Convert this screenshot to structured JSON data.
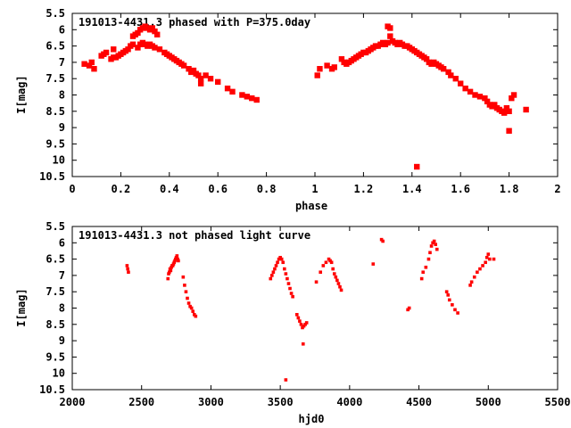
{
  "chart_data": [
    {
      "type": "scatter",
      "title": "191013-4431.3 phased with P=375.0day",
      "xlabel": "phase",
      "ylabel": "I[mag]",
      "xlim": [
        0,
        2
      ],
      "ylim": [
        10.5,
        5.5
      ],
      "y_inverted": true,
      "grid": false,
      "legend": "none",
      "color": "#ff0000",
      "marker_size": "large",
      "xticks": [
        "0",
        "0.2",
        "0.4",
        "0.6",
        "0.8",
        "1",
        "1.2",
        "1.4",
        "1.6",
        "1.8",
        "2"
      ],
      "xtick_values": [
        0,
        0.2,
        0.4,
        0.6,
        0.8,
        1.0,
        1.2,
        1.4,
        1.6,
        1.8,
        2.0
      ],
      "yticks": [
        "5.5",
        "6",
        "6.5",
        "7",
        "7.5",
        "8",
        "8.5",
        "9",
        "9.5",
        "10",
        "10.5"
      ],
      "ytick_values": [
        5.5,
        6,
        6.5,
        7,
        7.5,
        8,
        8.5,
        9,
        9.5,
        10,
        10.5
      ],
      "series": [
        {
          "points": [
            [
              0.05,
              7.05
            ],
            [
              0.07,
              7.1
            ],
            [
              0.08,
              7.0
            ],
            [
              0.09,
              7.2
            ],
            [
              0.12,
              6.8
            ],
            [
              0.13,
              6.75
            ],
            [
              0.14,
              6.7
            ],
            [
              0.16,
              6.9
            ],
            [
              0.17,
              6.85
            ],
            [
              0.17,
              6.6
            ],
            [
              0.18,
              6.85
            ],
            [
              0.19,
              6.8
            ],
            [
              0.2,
              6.75
            ],
            [
              0.21,
              6.7
            ],
            [
              0.22,
              6.65
            ],
            [
              0.23,
              6.6
            ],
            [
              0.24,
              6.5
            ],
            [
              0.25,
              6.45
            ],
            [
              0.25,
              6.2
            ],
            [
              0.26,
              6.15
            ],
            [
              0.27,
              6.1
            ],
            [
              0.27,
              6.55
            ],
            [
              0.28,
              6.0
            ],
            [
              0.28,
              6.45
            ],
            [
              0.29,
              5.95
            ],
            [
              0.29,
              6.4
            ],
            [
              0.3,
              5.9
            ],
            [
              0.3,
              6.45
            ],
            [
              0.31,
              5.95
            ],
            [
              0.31,
              6.5
            ],
            [
              0.32,
              6.0
            ],
            [
              0.32,
              6.45
            ],
            [
              0.33,
              5.95
            ],
            [
              0.33,
              6.5
            ],
            [
              0.34,
              6.05
            ],
            [
              0.34,
              6.55
            ],
            [
              0.35,
              6.15
            ],
            [
              0.36,
              6.6
            ],
            [
              0.38,
              6.7
            ],
            [
              0.39,
              6.75
            ],
            [
              0.4,
              6.8
            ],
            [
              0.41,
              6.85
            ],
            [
              0.42,
              6.9
            ],
            [
              0.43,
              6.95
            ],
            [
              0.44,
              7.0
            ],
            [
              0.45,
              7.05
            ],
            [
              0.46,
              7.1
            ],
            [
              0.48,
              7.2
            ],
            [
              0.49,
              7.3
            ],
            [
              0.5,
              7.25
            ],
            [
              0.51,
              7.35
            ],
            [
              0.52,
              7.4
            ],
            [
              0.53,
              7.5
            ],
            [
              0.53,
              7.65
            ],
            [
              0.55,
              7.4
            ],
            [
              0.57,
              7.5
            ],
            [
              0.6,
              7.6
            ],
            [
              0.64,
              7.8
            ],
            [
              0.66,
              7.9
            ],
            [
              0.7,
              8.0
            ],
            [
              0.72,
              8.05
            ],
            [
              0.74,
              8.1
            ],
            [
              0.76,
              8.15
            ]
          ]
        },
        {
          "points": [
            [
              1.01,
              7.4
            ],
            [
              1.02,
              7.2
            ],
            [
              1.05,
              7.1
            ],
            [
              1.07,
              7.2
            ],
            [
              1.08,
              7.15
            ],
            [
              1.11,
              6.9
            ],
            [
              1.12,
              7.0
            ],
            [
              1.13,
              7.05
            ],
            [
              1.14,
              7.0
            ],
            [
              1.15,
              6.95
            ],
            [
              1.16,
              6.9
            ],
            [
              1.17,
              6.85
            ],
            [
              1.18,
              6.8
            ],
            [
              1.19,
              6.75
            ],
            [
              1.2,
              6.7
            ],
            [
              1.21,
              6.7
            ],
            [
              1.22,
              6.65
            ],
            [
              1.23,
              6.6
            ],
            [
              1.24,
              6.55
            ],
            [
              1.25,
              6.5
            ],
            [
              1.26,
              6.5
            ],
            [
              1.27,
              6.45
            ],
            [
              1.28,
              6.4
            ],
            [
              1.29,
              6.45
            ],
            [
              1.3,
              6.4
            ],
            [
              1.3,
              5.9
            ],
            [
              1.31,
              5.95
            ],
            [
              1.31,
              6.2
            ],
            [
              1.32,
              6.35
            ],
            [
              1.33,
              6.4
            ],
            [
              1.34,
              6.45
            ],
            [
              1.35,
              6.4
            ],
            [
              1.36,
              6.45
            ],
            [
              1.37,
              6.5
            ],
            [
              1.38,
              6.5
            ],
            [
              1.39,
              6.55
            ],
            [
              1.4,
              6.6
            ],
            [
              1.41,
              6.65
            ],
            [
              1.42,
              6.7
            ],
            [
              1.43,
              6.75
            ],
            [
              1.44,
              6.8
            ],
            [
              1.45,
              6.85
            ],
            [
              1.46,
              6.9
            ],
            [
              1.47,
              7.0
            ],
            [
              1.48,
              7.05
            ],
            [
              1.49,
              7.0
            ],
            [
              1.5,
              7.05
            ],
            [
              1.51,
              7.1
            ],
            [
              1.52,
              7.15
            ],
            [
              1.53,
              7.2
            ],
            [
              1.55,
              7.3
            ],
            [
              1.56,
              7.4
            ],
            [
              1.58,
              7.5
            ],
            [
              1.6,
              7.65
            ],
            [
              1.62,
              7.8
            ],
            [
              1.64,
              7.9
            ],
            [
              1.66,
              8.0
            ],
            [
              1.68,
              8.05
            ],
            [
              1.7,
              8.1
            ],
            [
              1.71,
              8.2
            ],
            [
              1.72,
              8.3
            ],
            [
              1.73,
              8.35
            ],
            [
              1.74,
              8.3
            ],
            [
              1.75,
              8.4
            ],
            [
              1.76,
              8.45
            ],
            [
              1.77,
              8.5
            ],
            [
              1.78,
              8.55
            ],
            [
              1.79,
              8.4
            ],
            [
              1.8,
              8.5
            ],
            [
              1.81,
              8.1
            ],
            [
              1.8,
              9.1
            ],
            [
              1.82,
              8.0
            ],
            [
              1.87,
              8.45
            ],
            [
              1.42,
              10.2
            ]
          ]
        }
      ]
    },
    {
      "type": "scatter",
      "title": "191013-4431.3 not phased light curve",
      "xlabel": "hjd0",
      "ylabel": "I[mag]",
      "xlim": [
        2000,
        5500
      ],
      "ylim": [
        10.5,
        5.5
      ],
      "y_inverted": true,
      "grid": false,
      "legend": "none",
      "color": "#ff0000",
      "marker_size": "small",
      "xticks": [
        "2000",
        "2500",
        "3000",
        "3500",
        "4000",
        "4500",
        "5000",
        "5500"
      ],
      "xtick_values": [
        2000,
        2500,
        3000,
        3500,
        4000,
        4500,
        5000,
        5500
      ],
      "yticks": [
        "5.5",
        "6",
        "6.5",
        "7",
        "7.5",
        "8",
        "8.5",
        "9",
        "9.5",
        "10",
        "10.5"
      ],
      "ytick_values": [
        5.5,
        6,
        6.5,
        7,
        7.5,
        8,
        8.5,
        9,
        9.5,
        10,
        10.5
      ],
      "series": [
        {
          "points": [
            [
              2395,
              6.7
            ],
            [
              2400,
              6.8
            ],
            [
              2405,
              6.9
            ],
            [
              2690,
              7.1
            ],
            [
              2695,
              6.95
            ],
            [
              2700,
              6.9
            ],
            [
              2705,
              6.8
            ],
            [
              2710,
              6.85
            ],
            [
              2715,
              6.75
            ],
            [
              2720,
              6.7
            ],
            [
              2725,
              6.7
            ],
            [
              2730,
              6.65
            ],
            [
              2735,
              6.6
            ],
            [
              2740,
              6.55
            ],
            [
              2745,
              6.5
            ],
            [
              2750,
              6.45
            ],
            [
              2755,
              6.4
            ],
            [
              2760,
              6.5
            ],
            [
              2765,
              6.55
            ],
            [
              2800,
              7.05
            ],
            [
              2810,
              7.3
            ],
            [
              2820,
              7.5
            ],
            [
              2830,
              7.7
            ],
            [
              2840,
              7.85
            ],
            [
              2850,
              7.95
            ],
            [
              2860,
              8.0
            ],
            [
              2870,
              8.1
            ],
            [
              2880,
              8.2
            ],
            [
              2890,
              8.25
            ],
            [
              3430,
              7.1
            ],
            [
              3440,
              7.0
            ],
            [
              3450,
              6.9
            ],
            [
              3460,
              6.8
            ],
            [
              3470,
              6.7
            ],
            [
              3480,
              6.6
            ],
            [
              3490,
              6.5
            ],
            [
              3500,
              6.45
            ],
            [
              3510,
              6.5
            ],
            [
              3520,
              6.6
            ],
            [
              3530,
              6.8
            ],
            [
              3540,
              6.95
            ],
            [
              3550,
              7.1
            ],
            [
              3560,
              7.25
            ],
            [
              3570,
              7.4
            ],
            [
              3580,
              7.55
            ],
            [
              3590,
              7.65
            ],
            [
              3620,
              8.2
            ],
            [
              3630,
              8.3
            ],
            [
              3640,
              8.4
            ],
            [
              3650,
              8.5
            ],
            [
              3660,
              8.6
            ],
            [
              3670,
              8.55
            ],
            [
              3680,
              8.5
            ],
            [
              3690,
              8.45
            ],
            [
              3665,
              9.1
            ],
            [
              3540,
              10.2
            ],
            [
              3760,
              7.2
            ],
            [
              3790,
              6.9
            ],
            [
              3810,
              6.7
            ],
            [
              3830,
              6.6
            ],
            [
              3850,
              6.5
            ],
            [
              3860,
              6.55
            ],
            [
              3870,
              6.6
            ],
            [
              3880,
              6.8
            ],
            [
              3890,
              6.95
            ],
            [
              3900,
              7.05
            ],
            [
              3910,
              7.15
            ],
            [
              3920,
              7.25
            ],
            [
              3930,
              7.35
            ],
            [
              3940,
              7.45
            ],
            [
              4170,
              6.65
            ],
            [
              4230,
              5.9
            ],
            [
              4240,
              5.95
            ],
            [
              4420,
              8.05
            ],
            [
              4430,
              8.0
            ],
            [
              4520,
              7.1
            ],
            [
              4530,
              6.9
            ],
            [
              4550,
              6.75
            ],
            [
              4570,
              6.5
            ],
            [
              4580,
              6.3
            ],
            [
              4590,
              6.1
            ],
            [
              4600,
              6.0
            ],
            [
              4610,
              5.95
            ],
            [
              4620,
              6.05
            ],
            [
              4630,
              6.2
            ],
            [
              4700,
              7.5
            ],
            [
              4710,
              7.6
            ],
            [
              4720,
              7.75
            ],
            [
              4740,
              7.9
            ],
            [
              4760,
              8.05
            ],
            [
              4780,
              8.15
            ],
            [
              4870,
              7.3
            ],
            [
              4880,
              7.2
            ],
            [
              4900,
              7.05
            ],
            [
              4920,
              6.9
            ],
            [
              4940,
              6.8
            ],
            [
              4960,
              6.7
            ],
            [
              4980,
              6.6
            ],
            [
              4990,
              6.45
            ],
            [
              5000,
              6.35
            ],
            [
              5010,
              6.5
            ],
            [
              5040,
              6.5
            ]
          ]
        }
      ]
    }
  ]
}
